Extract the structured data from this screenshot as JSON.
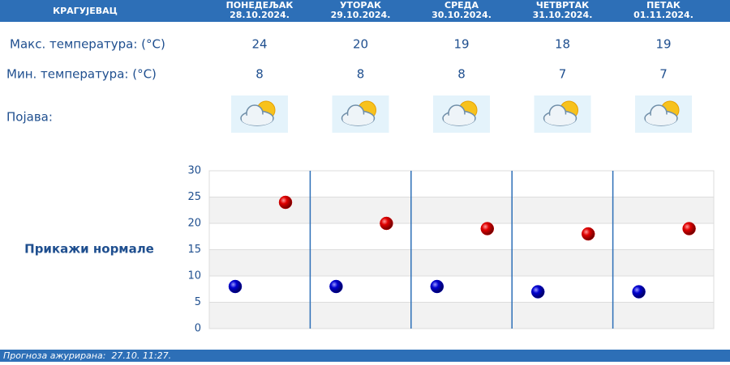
{
  "header": {
    "city": "КРАГУЈЕВАЦ"
  },
  "days": [
    {
      "name": "ПОНЕДЕЉАК",
      "date": "28.10.2024."
    },
    {
      "name": "УТОРАК",
      "date": "29.10.2024."
    },
    {
      "name": "СРЕДА",
      "date": "30.10.2024."
    },
    {
      "name": "ЧЕТВРТАК",
      "date": "31.10.2024."
    },
    {
      "name": "ПЕТАК",
      "date": "01.11.2024."
    }
  ],
  "rows": {
    "max_label": "Макс. температура: (°C)",
    "min_label": "Мин. температура: (°C)",
    "weather_label": "Појава:"
  },
  "toggle": "Прикажи нормале",
  "footer": "Прогноза ажурирана:  27.10. 11:27.",
  "chart_data": {
    "type": "scatter",
    "series": [
      {
        "color": "#d40000",
        "values": [
          24,
          20,
          19,
          18,
          19
        ]
      },
      {
        "color": "#0000c8",
        "values": [
          8,
          8,
          8,
          7,
          7
        ]
      }
    ],
    "ylim": [
      0,
      30
    ],
    "yticks": [
      0,
      5,
      10,
      15,
      20,
      25,
      30
    ],
    "grid": true
  }
}
